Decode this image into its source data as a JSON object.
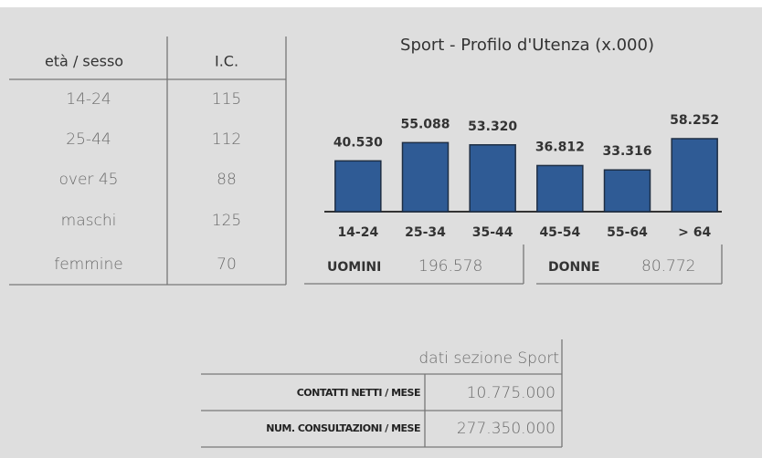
{
  "table": {
    "header": [
      "età / sesso",
      "I.C."
    ],
    "rows": [
      [
        "14-24",
        115
      ],
      [
        "25-44",
        112
      ],
      [
        "over 45",
        88
      ],
      [
        "maschi",
        125
      ],
      [
        "femmine",
        70
      ]
    ]
  },
  "chart_data": {
    "type": "bar",
    "title": "Sport  - Profilo d'Utenza (x.000)",
    "categories": [
      "14-24",
      "25-34",
      "35-44",
      "45-54",
      "55-64",
      "> 64"
    ],
    "values": [
      40530,
      55088,
      53320,
      36812,
      33316,
      58252
    ],
    "value_labels": [
      "40.530",
      "55.088",
      "53.320",
      "36.812",
      "33.316",
      "58.252"
    ],
    "color": "#2f5b95"
  },
  "totals": [
    {
      "label": "UOMINI",
      "value": "196.578"
    },
    {
      "label": "DONNE",
      "value": "80.772"
    }
  ],
  "summary": {
    "caption": "dati sezione Sport",
    "rows": [
      [
        "CONTATTI NETTI / MESE",
        "10.775.000"
      ],
      [
        "NUM. CONSULTAZIONI / MESE",
        "277.350.000"
      ]
    ]
  }
}
